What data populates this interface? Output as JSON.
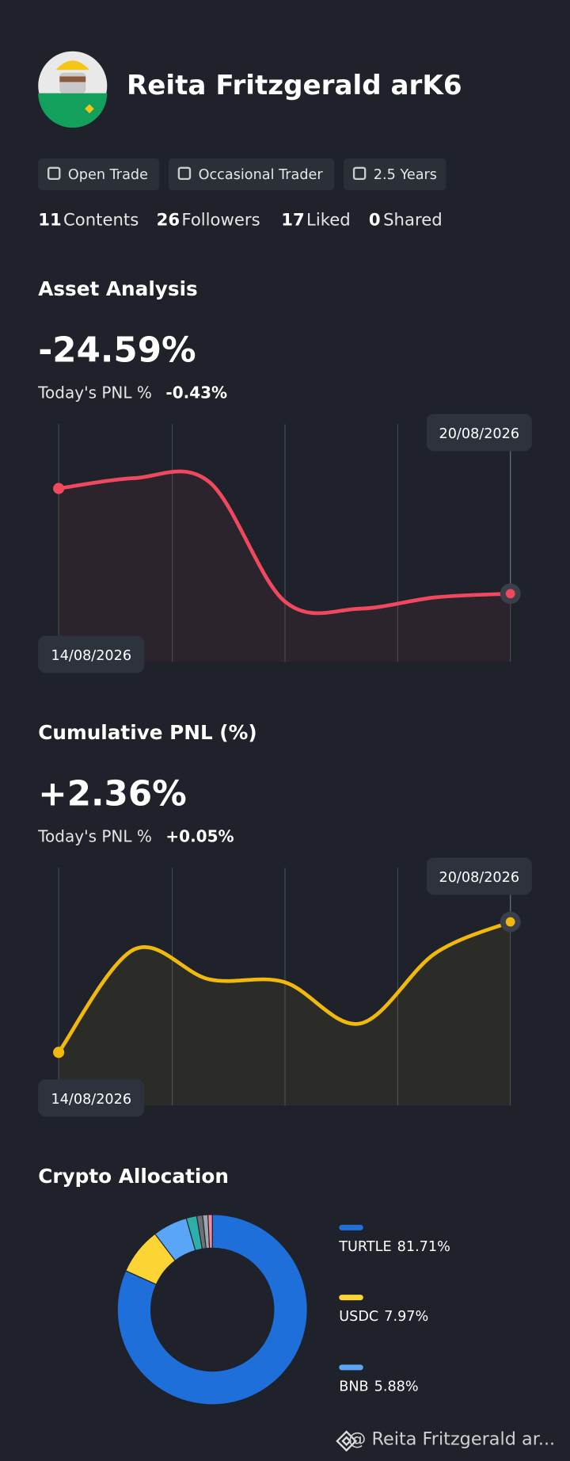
{
  "profile": {
    "name": "Reita Fritzgerald arK6",
    "badges": [
      "Open Trade",
      "Occasional Trader",
      "2.5 Years"
    ],
    "stats": [
      {
        "value": 11,
        "label": "Contents"
      },
      {
        "value": 26,
        "label": "Followers"
      },
      {
        "value": 17,
        "label": "Liked"
      },
      {
        "value": 0,
        "label": "Shared"
      }
    ]
  },
  "chart_data": [
    {
      "type": "line",
      "title": "Asset Analysis",
      "headline": "-24.59%",
      "today_label": "Today's PNL %",
      "today_value": "-0.43%",
      "start_label": "14/08/2026",
      "end_label": "20/08/2026",
      "color": "#f0485e",
      "values": [
        -2.38,
        -0.2,
        -0.99,
        -26.18,
        -27.76,
        -25.38,
        -24.59
      ]
    },
    {
      "type": "line",
      "title": "Cumulative PNL (%)",
      "headline": "+2.36%",
      "today_label": "Today's PNL %",
      "today_value": "+0.05%",
      "start_label": "14/08/2026",
      "end_label": "20/08/2026",
      "color": "#f0b90b",
      "values": [
        0,
        1.86,
        1.32,
        1.27,
        0.52,
        1.79,
        2.36
      ]
    },
    {
      "type": "pie",
      "title": "Crypto Allocation",
      "categories": [
        "TURTLE",
        "USDC",
        "BNB",
        null,
        null,
        null,
        null
      ],
      "values": [
        81.71,
        7.97,
        5.88,
        1.8,
        1.0,
        0.9,
        0.74
      ],
      "value_labels": [
        "81.71%",
        "7.97%",
        "5.88%",
        null,
        null,
        null,
        null
      ],
      "colors": [
        "#1e6fd9",
        "#fcd535",
        "#5aa5f5",
        "#2ab0a8",
        "#6b6f78",
        "#a0a4ac",
        "#f28ba0"
      ]
    }
  ],
  "footer": "@ Reita Fritzgerald ar..."
}
